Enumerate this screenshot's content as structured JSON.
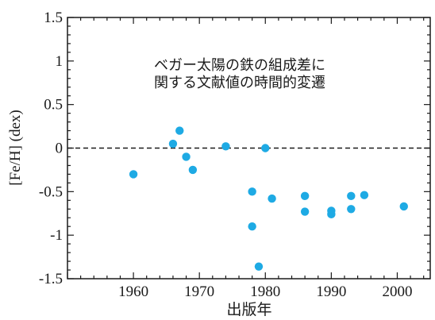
{
  "chart_data": {
    "type": "scatter",
    "title": "",
    "annotation": [
      "ベガー太陽の鉄の組成差に",
      "関する文献値の時間的変遷"
    ],
    "xlabel": "出版年",
    "ylabel": "[Fe/H] (dex)",
    "xlim": [
      1950,
      2005
    ],
    "ylim": [
      -1.5,
      1.5
    ],
    "xticks": [
      1960,
      1970,
      1980,
      1990,
      2000
    ],
    "xtick_labels": [
      "1960",
      "1970",
      "1980",
      "1990",
      "2000"
    ],
    "yticks": [
      -1.5,
      -1,
      -0.5,
      0,
      0.5,
      1,
      1.5
    ],
    "ytick_labels": [
      "-1.5",
      "-1",
      "-0.5",
      "0",
      "0.5",
      "1",
      "1.5"
    ],
    "reference_line": {
      "y": 0,
      "style": "dashed"
    },
    "grid": false,
    "marker_color": "#1eaae4",
    "points": [
      {
        "x": 1960,
        "y": -0.3
      },
      {
        "x": 1966,
        "y": 0.05
      },
      {
        "x": 1967,
        "y": 0.2
      },
      {
        "x": 1968,
        "y": -0.1
      },
      {
        "x": 1969,
        "y": -0.25
      },
      {
        "x": 1974,
        "y": 0.02
      },
      {
        "x": 1978,
        "y": -0.5
      },
      {
        "x": 1978,
        "y": -0.9
      },
      {
        "x": 1979,
        "y": -1.36
      },
      {
        "x": 1980,
        "y": 0.0
      },
      {
        "x": 1981,
        "y": -0.58
      },
      {
        "x": 1986,
        "y": -0.55
      },
      {
        "x": 1986,
        "y": -0.73
      },
      {
        "x": 1990,
        "y": -0.72
      },
      {
        "x": 1990,
        "y": -0.76
      },
      {
        "x": 1993,
        "y": -0.55
      },
      {
        "x": 1993,
        "y": -0.7
      },
      {
        "x": 1995,
        "y": -0.54
      },
      {
        "x": 2001,
        "y": -0.67
      }
    ]
  }
}
